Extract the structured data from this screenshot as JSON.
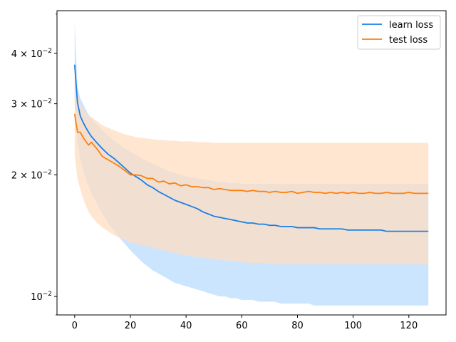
{
  "chart_data": {
    "type": "line",
    "title": "",
    "xlabel": "",
    "ylabel": "",
    "xlim": [
      -6.35,
      133.35
    ],
    "ylim": [
      0.009,
      0.051
    ],
    "yscale": "log",
    "grid": false,
    "legend_position": "top-right",
    "x_ticks": [
      0,
      20,
      40,
      60,
      80,
      100,
      120
    ],
    "x_tick_labels": [
      "0",
      "20",
      "40",
      "60",
      "80",
      "100",
      "120"
    ],
    "y_ticks": [
      {
        "value": 0.01,
        "base": "10",
        "exp": "−2"
      },
      {
        "value": 0.02,
        "base": "2 × 10",
        "exp": "−2"
      },
      {
        "value": 0.03,
        "base": "3 × 10",
        "exp": "−2"
      },
      {
        "value": 0.04,
        "base": "4 × 10",
        "exp": "−2"
      }
    ],
    "y_minor_ticks": [
      0.009,
      0.05
    ],
    "series": [
      {
        "name": "learn loss",
        "color": "#1a80e6",
        "band_color": "#cce5ff",
        "x": [
          0,
          1,
          2,
          3,
          4,
          5,
          6,
          8,
          10,
          12,
          14,
          16,
          18,
          20,
          22,
          24,
          26,
          28,
          30,
          32,
          34,
          36,
          38,
          40,
          42,
          44,
          46,
          48,
          50,
          52,
          54,
          56,
          58,
          60,
          62,
          64,
          66,
          68,
          70,
          72,
          74,
          76,
          78,
          80,
          82,
          84,
          86,
          88,
          90,
          92,
          94,
          96,
          98,
          100,
          102,
          104,
          106,
          108,
          110,
          112,
          114,
          116,
          118,
          120,
          122,
          124,
          126,
          127
        ],
        "mean": [
          0.0375,
          0.0302,
          0.028,
          0.027,
          0.0262,
          0.0255,
          0.0249,
          0.024,
          0.0232,
          0.0225,
          0.022,
          0.0214,
          0.0208,
          0.0202,
          0.0198,
          0.0194,
          0.0189,
          0.0186,
          0.0182,
          0.0179,
          0.0176,
          0.0173,
          0.0171,
          0.0169,
          0.0167,
          0.0165,
          0.0162,
          0.016,
          0.0158,
          0.0157,
          0.0156,
          0.0155,
          0.0154,
          0.0153,
          0.0152,
          0.0152,
          0.0151,
          0.0151,
          0.015,
          0.015,
          0.0149,
          0.0149,
          0.0149,
          0.0148,
          0.0148,
          0.0148,
          0.0148,
          0.0147,
          0.0147,
          0.0147,
          0.0147,
          0.0147,
          0.0146,
          0.0146,
          0.0146,
          0.0146,
          0.0146,
          0.0146,
          0.0146,
          0.0145,
          0.0145,
          0.0145,
          0.0145,
          0.0145,
          0.0145,
          0.0145,
          0.0145,
          0.0145
        ],
        "upper": [
          0.048,
          0.033,
          0.031,
          0.03,
          0.029,
          0.0282,
          0.0276,
          0.0266,
          0.0258,
          0.025,
          0.0244,
          0.0238,
          0.0233,
          0.0228,
          0.0224,
          0.022,
          0.0216,
          0.0213,
          0.021,
          0.0207,
          0.0204,
          0.0202,
          0.02,
          0.0198,
          0.0197,
          0.0196,
          0.0195,
          0.0194,
          0.0193,
          0.0192,
          0.0192,
          0.0191,
          0.0191,
          0.019,
          0.019,
          0.019,
          0.019,
          0.019,
          0.019,
          0.019,
          0.019,
          0.019,
          0.019,
          0.019,
          0.019,
          0.019,
          0.019,
          0.019,
          0.019,
          0.019,
          0.019,
          0.019,
          0.019,
          0.019,
          0.019,
          0.019,
          0.019,
          0.019,
          0.019,
          0.019,
          0.019,
          0.019,
          0.019,
          0.019,
          0.019,
          0.019,
          0.019,
          0.019
        ],
        "lower": [
          0.03,
          0.024,
          0.022,
          0.0205,
          0.0195,
          0.0188,
          0.018,
          0.017,
          0.016,
          0.0152,
          0.0146,
          0.014,
          0.0135,
          0.013,
          0.0126,
          0.0122,
          0.0119,
          0.0116,
          0.0114,
          0.0112,
          0.011,
          0.0108,
          0.0107,
          0.0106,
          0.0105,
          0.0104,
          0.0103,
          0.0102,
          0.0101,
          0.01,
          0.01,
          0.0099,
          0.0099,
          0.0098,
          0.0098,
          0.0098,
          0.0097,
          0.0097,
          0.0097,
          0.0097,
          0.0096,
          0.0096,
          0.0096,
          0.0096,
          0.0096,
          0.0096,
          0.0095,
          0.0095,
          0.0095,
          0.0095,
          0.0095,
          0.0095,
          0.0095,
          0.0095,
          0.0095,
          0.0095,
          0.0095,
          0.0095,
          0.0095,
          0.0095,
          0.0095,
          0.0095,
          0.0095,
          0.0095,
          0.0095,
          0.0095,
          0.0095,
          0.0095
        ]
      },
      {
        "name": "test loss",
        "color": "#ff7f0e",
        "band_color": "#ffdcbf",
        "x": [
          0,
          1,
          2,
          3,
          4,
          5,
          6,
          8,
          10,
          12,
          14,
          16,
          18,
          20,
          22,
          24,
          26,
          28,
          30,
          32,
          34,
          36,
          38,
          40,
          42,
          44,
          46,
          48,
          50,
          52,
          54,
          56,
          58,
          60,
          62,
          64,
          66,
          68,
          70,
          72,
          74,
          76,
          78,
          80,
          82,
          84,
          86,
          88,
          90,
          92,
          94,
          96,
          98,
          100,
          102,
          104,
          106,
          108,
          110,
          112,
          114,
          116,
          118,
          120,
          122,
          124,
          126,
          127
        ],
        "mean": [
          0.0283,
          0.0255,
          0.0255,
          0.0248,
          0.0242,
          0.0237,
          0.0241,
          0.0232,
          0.0222,
          0.0218,
          0.0214,
          0.021,
          0.0205,
          0.02,
          0.02,
          0.0199,
          0.0196,
          0.0196,
          0.0192,
          0.0193,
          0.019,
          0.0191,
          0.0188,
          0.0189,
          0.0187,
          0.0187,
          0.0186,
          0.0186,
          0.0184,
          0.0185,
          0.0184,
          0.0183,
          0.0183,
          0.0183,
          0.0182,
          0.0183,
          0.0182,
          0.0182,
          0.0181,
          0.0182,
          0.0181,
          0.0181,
          0.0182,
          0.018,
          0.0181,
          0.0182,
          0.0181,
          0.0181,
          0.018,
          0.0181,
          0.018,
          0.0181,
          0.018,
          0.0181,
          0.018,
          0.018,
          0.0181,
          0.018,
          0.018,
          0.0181,
          0.018,
          0.018,
          0.018,
          0.0181,
          0.018,
          0.018,
          0.018,
          0.018
        ],
        "upper": [
          0.0355,
          0.032,
          0.03,
          0.029,
          0.0285,
          0.028,
          0.0278,
          0.0272,
          0.0265,
          0.0262,
          0.0258,
          0.0255,
          0.0252,
          0.025,
          0.0248,
          0.0247,
          0.0246,
          0.0245,
          0.0244,
          0.0244,
          0.0243,
          0.0243,
          0.0242,
          0.0242,
          0.0242,
          0.0241,
          0.0241,
          0.0241,
          0.024,
          0.024,
          0.024,
          0.024,
          0.024,
          0.024,
          0.024,
          0.024,
          0.024,
          0.024,
          0.024,
          0.024,
          0.024,
          0.024,
          0.024,
          0.024,
          0.024,
          0.024,
          0.024,
          0.024,
          0.024,
          0.024,
          0.024,
          0.024,
          0.024,
          0.024,
          0.024,
          0.024,
          0.024,
          0.024,
          0.024,
          0.024,
          0.024,
          0.024,
          0.024,
          0.024,
          0.024,
          0.024,
          0.024,
          0.024
        ],
        "lower": [
          0.0225,
          0.0195,
          0.0185,
          0.0175,
          0.0168,
          0.0162,
          0.0158,
          0.0152,
          0.0148,
          0.0145,
          0.0142,
          0.014,
          0.0138,
          0.0136,
          0.0135,
          0.0134,
          0.0133,
          0.0132,
          0.0131,
          0.013,
          0.0129,
          0.0128,
          0.0127,
          0.0126,
          0.0126,
          0.0125,
          0.0125,
          0.0124,
          0.0124,
          0.0123,
          0.0123,
          0.0122,
          0.0122,
          0.0122,
          0.0121,
          0.0121,
          0.0121,
          0.0121,
          0.012,
          0.012,
          0.012,
          0.012,
          0.012,
          0.012,
          0.012,
          0.012,
          0.012,
          0.012,
          0.012,
          0.012,
          0.012,
          0.012,
          0.012,
          0.012,
          0.012,
          0.012,
          0.012,
          0.012,
          0.012,
          0.012,
          0.012,
          0.012,
          0.012,
          0.012,
          0.012,
          0.012,
          0.012,
          0.012
        ]
      }
    ]
  }
}
